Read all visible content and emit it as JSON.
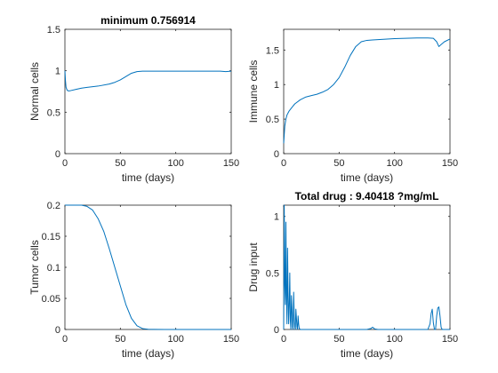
{
  "figure": {
    "line_color": "#0072BD"
  },
  "chart_data": [
    {
      "type": "line",
      "title": "minimum 0.756914",
      "xlabel": "time (days)",
      "ylabel": "Normal cells",
      "xlim": [
        0,
        150
      ],
      "ylim": [
        0,
        1.5
      ],
      "xticks": [
        0,
        50,
        100,
        150
      ],
      "yticks": [
        0,
        0.5,
        1,
        1.5
      ],
      "xtick_labels": [
        "0",
        "50",
        "100",
        "150"
      ],
      "ytick_labels": [
        "0",
        "0.5",
        "1",
        "1.5"
      ],
      "grid": false,
      "series": [
        {
          "x": [
            0,
            0.5,
            1,
            2,
            3,
            5,
            10,
            15,
            20,
            30,
            40,
            45,
            50,
            55,
            60,
            65,
            70,
            80,
            90,
            100,
            110,
            120,
            130,
            140,
            145,
            150
          ],
          "y": [
            1.0,
            0.88,
            0.8,
            0.765,
            0.757,
            0.76,
            0.775,
            0.79,
            0.8,
            0.815,
            0.84,
            0.86,
            0.89,
            0.93,
            0.97,
            0.99,
            0.995,
            0.995,
            0.995,
            0.995,
            0.995,
            0.995,
            0.995,
            0.995,
            0.99,
            0.995
          ]
        }
      ]
    },
    {
      "type": "line",
      "title": "",
      "xlabel": "time (days)",
      "ylabel": "Immune cells",
      "xlim": [
        0,
        150
      ],
      "ylim": [
        0,
        1.8
      ],
      "xticks": [
        0,
        50,
        100,
        150
      ],
      "yticks": [
        0,
        0.5,
        1,
        1.5
      ],
      "xtick_labels": [
        "0",
        "50",
        "100",
        "150"
      ],
      "ytick_labels": [
        "0",
        "0.5",
        "1",
        "1.5"
      ],
      "grid": false,
      "series": [
        {
          "x": [
            0,
            1,
            2,
            3,
            5,
            8,
            10,
            15,
            20,
            25,
            30,
            35,
            40,
            45,
            50,
            55,
            60,
            65,
            70,
            75,
            80,
            90,
            100,
            110,
            120,
            130,
            135,
            138,
            140,
            142,
            145,
            150
          ],
          "y": [
            0.15,
            0.4,
            0.5,
            0.56,
            0.62,
            0.68,
            0.72,
            0.78,
            0.82,
            0.84,
            0.86,
            0.89,
            0.93,
            1.0,
            1.1,
            1.25,
            1.42,
            1.55,
            1.62,
            1.64,
            1.645,
            1.655,
            1.665,
            1.67,
            1.675,
            1.675,
            1.67,
            1.62,
            1.55,
            1.58,
            1.62,
            1.66
          ]
        }
      ]
    },
    {
      "type": "line",
      "title": "",
      "xlabel": "time (days)",
      "ylabel": "Tumor cells",
      "xlim": [
        0,
        150
      ],
      "ylim": [
        0,
        0.2
      ],
      "xticks": [
        0,
        50,
        100,
        150
      ],
      "yticks": [
        0,
        0.05,
        0.1,
        0.15,
        0.2
      ],
      "xtick_labels": [
        "0",
        "50",
        "100",
        "150"
      ],
      "ytick_labels": [
        "0",
        "0.05",
        "0.1",
        "0.15",
        "0.2"
      ],
      "grid": false,
      "series": [
        {
          "x": [
            0,
            5,
            10,
            15,
            20,
            25,
            30,
            35,
            40,
            45,
            50,
            55,
            60,
            65,
            70,
            75,
            80,
            90,
            100,
            110,
            120,
            130,
            140,
            150
          ],
          "y": [
            0.2,
            0.2,
            0.2,
            0.2,
            0.198,
            0.192,
            0.178,
            0.158,
            0.13,
            0.1,
            0.07,
            0.04,
            0.018,
            0.006,
            0.0015,
            0.0003,
            0.0001,
            0,
            0,
            0,
            0,
            0,
            0,
            0
          ]
        }
      ]
    },
    {
      "type": "line",
      "title": "Total drug : 9.40418 ?mg/mL",
      "xlabel": "time (days)",
      "ylabel": "Drug input",
      "xlim": [
        0,
        150
      ],
      "ylim": [
        0,
        1.1
      ],
      "xticks": [
        0,
        50,
        100,
        150
      ],
      "yticks": [
        0,
        0.5,
        1
      ],
      "xtick_labels": [
        "0",
        "50",
        "100",
        "150"
      ],
      "ytick_labels": [
        "0",
        "0.5",
        "1"
      ],
      "grid": false,
      "series": [
        {
          "x": [
            0,
            0.5,
            1,
            1.5,
            2,
            2.5,
            3,
            3.5,
            4,
            4.5,
            5,
            5.5,
            6,
            6.5,
            7,
            7.5,
            8,
            8.5,
            9,
            9.5,
            10,
            10.5,
            11,
            11.5,
            12,
            12.5,
            13,
            13.5,
            14,
            15,
            18,
            25,
            40,
            60,
            75,
            79,
            80,
            81,
            82,
            85,
            100,
            120,
            130,
            132,
            133,
            134,
            135,
            136,
            137,
            138,
            139,
            140,
            141,
            142,
            143,
            145,
            150
          ],
          "y": [
            0,
            1.1,
            0.4,
            0.22,
            0.95,
            0.3,
            0.05,
            0.72,
            0.3,
            0.05,
            0.22,
            0.5,
            0.08,
            0.0,
            0.3,
            0.18,
            0.02,
            0.0,
            0.33,
            0.12,
            0.02,
            0.0,
            0.18,
            0.1,
            0.02,
            0.0,
            0.12,
            0.05,
            0.01,
            0.0,
            0.0,
            0.0,
            0.0,
            0.0,
            0.0,
            0.01,
            0.02,
            0.015,
            0.005,
            0.0,
            0.0,
            0.0,
            0.0,
            0.05,
            0.14,
            0.18,
            0.06,
            0.0,
            0.0,
            0.12,
            0.19,
            0.2,
            0.12,
            0.02,
            0.0,
            0.0,
            0.0
          ]
        }
      ]
    }
  ]
}
